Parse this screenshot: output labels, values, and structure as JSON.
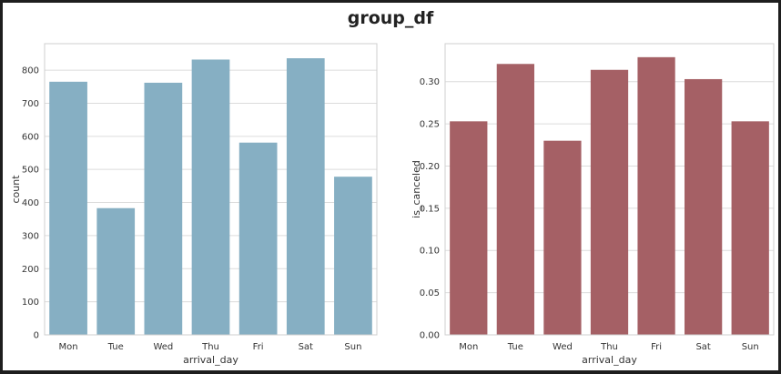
{
  "figure_title": "group_df",
  "chart_data": [
    {
      "type": "bar",
      "categories": [
        "Mon",
        "Tue",
        "Wed",
        "Thu",
        "Fri",
        "Sat",
        "Sun"
      ],
      "values": [
        765,
        383,
        762,
        832,
        581,
        836,
        478
      ],
      "xlabel": "arrival_day",
      "ylabel": "count",
      "ylim": [
        0,
        880
      ],
      "yticks": [
        0,
        100,
        200,
        300,
        400,
        500,
        600,
        700,
        800
      ],
      "ytick_labels": [
        "0",
        "100",
        "200",
        "300",
        "400",
        "500",
        "600",
        "700",
        "800"
      ],
      "grid": true,
      "color": "#86afc3"
    },
    {
      "type": "bar",
      "categories": [
        "Mon",
        "Tue",
        "Wed",
        "Thu",
        "Fri",
        "Sat",
        "Sun"
      ],
      "values": [
        0.253,
        0.321,
        0.23,
        0.314,
        0.329,
        0.303,
        0.253
      ],
      "xlabel": "arrival_day",
      "ylabel": "is_canceled",
      "ylim": [
        0,
        0.345
      ],
      "yticks": [
        0,
        0.05,
        0.1,
        0.15,
        0.2,
        0.25,
        0.3
      ],
      "ytick_labels": [
        "0.00",
        "0.05",
        "0.10",
        "0.15",
        "0.20",
        "0.25",
        "0.30"
      ],
      "grid": true,
      "color": "#a56065"
    }
  ]
}
